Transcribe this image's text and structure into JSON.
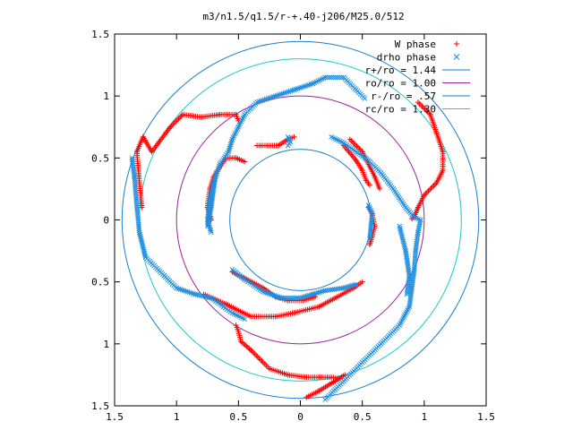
{
  "chart_data": {
    "type": "scatter",
    "title": "m3/n1.5/q1.5/r-+.40-j206/M25.0/512",
    "xlim": [
      -1.5,
      1.5
    ],
    "ylim": [
      -1.5,
      1.5
    ],
    "x_ticks": [
      -1.5,
      -1,
      -0.5,
      0,
      0.5,
      1,
      1.5
    ],
    "y_ticks": [
      -1.5,
      -1,
      -0.5,
      0,
      0.5,
      1,
      1.5
    ],
    "x_tick_labels": [
      "1.5",
      "1",
      "0.5",
      "0",
      "0.5",
      "1",
      "1.5"
    ],
    "y_tick_labels": [
      "1.5",
      "1",
      "0.5",
      "0",
      "0.5",
      "1",
      "1.5"
    ],
    "grid": false,
    "legend_position": "top-right",
    "circles": [
      {
        "label": "r+/ro = 1.44",
        "radius": 1.44,
        "color": "#1a7fd0"
      },
      {
        "label": "ro/ro = 1.00",
        "radius": 1.0,
        "color": "#a020a0"
      },
      {
        "label": "r-/ro = .57",
        "radius": 0.57,
        "color": "#1a7fd0"
      },
      {
        "label": "rc/ro = 1.30",
        "radius": 1.3,
        "color": "#20c8c8"
      }
    ],
    "series": [
      {
        "name": "W phase",
        "marker": "plus",
        "color": "#ff0000",
        "segments": [
          [
            [
              -1.28,
              0.1
            ],
            [
              -1.3,
              0.3
            ],
            [
              -1.32,
              0.55
            ],
            [
              -1.27,
              0.67
            ],
            [
              -1.2,
              0.55
            ],
            [
              -1.05,
              0.75
            ],
            [
              -0.95,
              0.85
            ],
            [
              -0.8,
              0.83
            ],
            [
              -0.65,
              0.85
            ],
            [
              -0.52,
              0.85
            ],
            [
              -0.5,
              0.8
            ]
          ],
          [
            [
              -0.52,
              -0.85
            ],
            [
              -0.5,
              -0.9
            ],
            [
              -0.48,
              -0.98
            ],
            [
              -0.4,
              -1.05
            ],
            [
              -0.3,
              -1.15
            ],
            [
              -0.25,
              -1.2
            ],
            [
              -0.1,
              -1.25
            ],
            [
              0.05,
              -1.27
            ],
            [
              0.15,
              -1.27
            ],
            [
              0.25,
              -1.27
            ],
            [
              0.32,
              -1.28
            ]
          ],
          [
            [
              0.05,
              -1.43
            ],
            [
              0.15,
              -1.38
            ],
            [
              0.28,
              -1.3
            ],
            [
              0.36,
              -1.25
            ]
          ],
          [
            [
              0.95,
              0.95
            ],
            [
              1.05,
              0.85
            ],
            [
              1.1,
              0.7
            ],
            [
              1.15,
              0.55
            ],
            [
              1.15,
              0.4
            ],
            [
              1.1,
              0.3
            ],
            [
              1.0,
              0.2
            ],
            [
              0.95,
              0.1
            ],
            [
              0.92,
              0.03
            ],
            [
              0.9,
              0.01
            ]
          ],
          [
            [
              -0.78,
              -0.6
            ],
            [
              -0.6,
              -0.68
            ],
            [
              -0.4,
              -0.78
            ],
            [
              -0.2,
              -0.78
            ],
            [
              -0.05,
              -0.75
            ],
            [
              0.15,
              -0.7
            ],
            [
              0.3,
              -0.62
            ],
            [
              0.43,
              -0.55
            ],
            [
              0.5,
              -0.5
            ]
          ],
          [
            [
              -0.35,
              0.6
            ],
            [
              -0.27,
              0.6
            ],
            [
              -0.18,
              0.6
            ],
            [
              -0.1,
              0.65
            ],
            [
              -0.05,
              0.67
            ]
          ],
          [
            [
              -0.72,
              0.0
            ],
            [
              -0.75,
              0.1
            ],
            [
              -0.73,
              0.25
            ],
            [
              -0.7,
              0.35
            ],
            [
              -0.6,
              0.5
            ],
            [
              -0.52,
              0.5
            ],
            [
              -0.45,
              0.47
            ]
          ],
          [
            [
              0.4,
              0.65
            ],
            [
              0.5,
              0.55
            ],
            [
              0.55,
              0.45
            ],
            [
              0.6,
              0.35
            ],
            [
              0.64,
              0.25
            ]
          ],
          [
            [
              0.35,
              0.6
            ],
            [
              0.45,
              0.48
            ],
            [
              0.5,
              0.4
            ],
            [
              0.53,
              0.32
            ],
            [
              0.56,
              0.28
            ]
          ],
          [
            [
              0.55,
              0.1
            ],
            [
              0.58,
              0.05
            ],
            [
              0.6,
              -0.05
            ],
            [
              0.58,
              -0.13
            ],
            [
              0.56,
              -0.2
            ]
          ],
          [
            [
              -0.55,
              -0.42
            ],
            [
              -0.45,
              -0.47
            ],
            [
              -0.3,
              -0.55
            ],
            [
              -0.2,
              -0.62
            ],
            [
              -0.1,
              -0.65
            ],
            [
              0.02,
              -0.65
            ],
            [
              0.12,
              -0.62
            ]
          ]
        ]
      },
      {
        "name": "drho phase",
        "marker": "cross",
        "color": "#1f8fe0",
        "segments": [
          [
            [
              -1.36,
              0.5
            ],
            [
              -1.34,
              0.35
            ],
            [
              -1.32,
              0.1
            ],
            [
              -1.3,
              -0.1
            ],
            [
              -1.25,
              -0.3
            ],
            [
              -1.1,
              -0.45
            ],
            [
              -1.0,
              -0.55
            ],
            [
              -0.85,
              -0.6
            ],
            [
              -0.72,
              -0.63
            ],
            [
              -0.62,
              -0.7
            ],
            [
              -0.55,
              -0.75
            ],
            [
              -0.45,
              -0.8
            ]
          ],
          [
            [
              0.2,
              -1.45
            ],
            [
              0.35,
              -1.3
            ],
            [
              0.5,
              -1.15
            ],
            [
              0.65,
              -1.0
            ],
            [
              0.8,
              -0.85
            ],
            [
              0.88,
              -0.7
            ],
            [
              0.9,
              -0.55
            ],
            [
              0.92,
              -0.4
            ],
            [
              0.93,
              -0.25
            ],
            [
              0.95,
              -0.1
            ],
            [
              0.97,
              0.0
            ]
          ],
          [
            [
              -0.72,
              -0.1
            ],
            [
              -0.75,
              0.0
            ],
            [
              -0.73,
              0.15
            ],
            [
              -0.7,
              0.3
            ],
            [
              -0.65,
              0.45
            ],
            [
              -0.58,
              0.55
            ],
            [
              -0.55,
              0.65
            ],
            [
              -0.5,
              0.75
            ],
            [
              -0.45,
              0.85
            ],
            [
              -0.35,
              0.95
            ],
            [
              -0.2,
              1.0
            ],
            [
              -0.05,
              1.05
            ],
            [
              0.1,
              1.1
            ],
            [
              0.2,
              1.15
            ],
            [
              0.35,
              1.15
            ],
            [
              0.45,
              1.05
            ],
            [
              0.52,
              0.98
            ]
          ],
          [
            [
              0.25,
              0.67
            ],
            [
              0.35,
              0.62
            ],
            [
              0.45,
              0.55
            ],
            [
              0.55,
              0.48
            ],
            [
              0.65,
              0.38
            ],
            [
              0.75,
              0.25
            ],
            [
              0.85,
              0.1
            ],
            [
              0.92,
              0.02
            ],
            [
              0.97,
              0.0
            ]
          ],
          [
            [
              -0.55,
              -0.4
            ],
            [
              -0.45,
              -0.48
            ],
            [
              -0.3,
              -0.58
            ],
            [
              -0.15,
              -0.63
            ],
            [
              0.0,
              -0.63
            ],
            [
              0.1,
              -0.6
            ],
            [
              0.2,
              -0.57
            ],
            [
              0.35,
              -0.55
            ],
            [
              0.45,
              -0.52
            ]
          ],
          [
            [
              -0.1,
              0.67
            ],
            [
              -0.08,
              0.63
            ],
            [
              -0.1,
              0.6
            ]
          ],
          [
            [
              0.55,
              0.12
            ],
            [
              0.58,
              0.05
            ],
            [
              0.57,
              -0.05
            ],
            [
              0.56,
              -0.15
            ]
          ],
          [
            [
              -0.75,
              -0.05
            ],
            [
              -0.72,
              0.1
            ],
            [
              -0.7,
              0.25
            ],
            [
              -0.68,
              0.38
            ]
          ],
          [
            [
              0.8,
              -0.05
            ],
            [
              0.85,
              -0.25
            ],
            [
              0.88,
              -0.45
            ],
            [
              0.86,
              -0.6
            ]
          ]
        ]
      }
    ]
  }
}
